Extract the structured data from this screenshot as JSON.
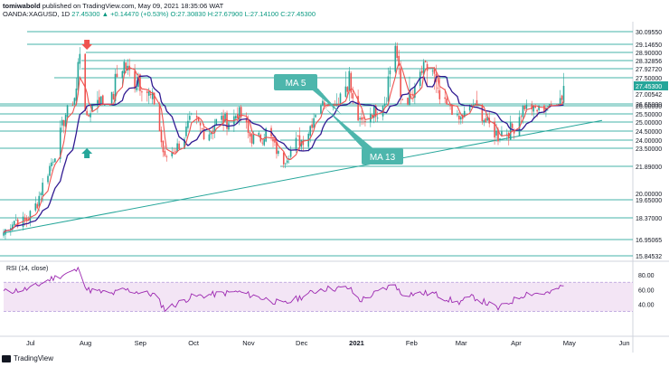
{
  "header": {
    "author": "tomiwabold",
    "published_text": "published on TradingView.com, May 09, 2021 18:35:06 WAT",
    "symbol": "OANDA:XAGUSD, 1D",
    "ohlc_text": "27.45300 ▲ +0.14470 (+0.53%) O:27.30830 H:27.67900 L:27.14100 C:27.45300"
  },
  "footer": {
    "brand": "TradingView"
  },
  "rsi_label": "RSI (14, close)",
  "annotations": [
    {
      "id": "ma5",
      "text": "MA 5"
    },
    {
      "id": "ma13",
      "text": "MA 13"
    }
  ],
  "colors": {
    "candle_up": "#26a69a",
    "candle_down": "#ef5350",
    "ma5": "#ef5350",
    "ma13": "#311b92",
    "hline": "#26a69a",
    "trendline": "#26a69a",
    "callout": "#4db6ac",
    "rsi_line": "#9c27b0",
    "rsi_band": "#f3e5f5",
    "arrow_down": "#ef5350",
    "arrow_up": "#26a69a",
    "current_price_bg": "#26a69a"
  },
  "chart_data": {
    "type": "candlestick",
    "symbol": "XAGUSD",
    "timeframe": "1D",
    "x_labels": [
      "Jul",
      "Aug",
      "Sep",
      "Oct",
      "Nov",
      "Dec",
      "2021",
      "Feb",
      "Mar",
      "Apr",
      "May",
      "Jun"
    ],
    "y_axis_ticks": [
      "15.84532",
      "16.95065",
      "18.37000",
      "19.65000",
      "20.00000",
      "21.89000",
      "23.50000",
      "24.00000",
      "24.50000",
      "25.00000",
      "25.50000",
      "26.00000",
      "26.65000",
      "27.00542",
      "27.45300",
      "27.50000",
      "27.92720",
      "28.32856",
      "28.90000",
      "29.14650",
      "30.09550"
    ],
    "current_price": 27.453,
    "horizontal_levels": [
      30.0955,
      29.1465,
      28.9,
      28.32856,
      27.9272,
      27.5,
      26.65,
      26.0,
      25.5,
      25.0,
      24.5,
      24.0,
      23.5,
      21.89,
      19.65,
      18.37,
      16.95065,
      15.84532
    ],
    "price_path": [
      {
        "date": "2020-06-25",
        "close": 17.6
      },
      {
        "date": "2020-07-06",
        "close": 18.3
      },
      {
        "date": "2020-07-14",
        "close": 19.2
      },
      {
        "date": "2020-07-22",
        "close": 22.5
      },
      {
        "date": "2020-07-28",
        "close": 24.5
      },
      {
        "date": "2020-08-05",
        "close": 27.5
      },
      {
        "date": "2020-08-07",
        "close": 29.2
      },
      {
        "date": "2020-08-11",
        "close": 24.8
      },
      {
        "date": "2020-08-17",
        "close": 27.0
      },
      {
        "date": "2020-08-25",
        "close": 26.6
      },
      {
        "date": "2020-09-01",
        "close": 28.3
      },
      {
        "date": "2020-09-10",
        "close": 27.3
      },
      {
        "date": "2020-09-18",
        "close": 26.9
      },
      {
        "date": "2020-09-24",
        "close": 22.3
      },
      {
        "date": "2020-10-02",
        "close": 24.0
      },
      {
        "date": "2020-10-09",
        "close": 24.9
      },
      {
        "date": "2020-10-20",
        "close": 24.6
      },
      {
        "date": "2020-11-04",
        "close": 25.6
      },
      {
        "date": "2020-11-10",
        "close": 24.2
      },
      {
        "date": "2020-11-20",
        "close": 24.3
      },
      {
        "date": "2020-11-30",
        "close": 22.6
      },
      {
        "date": "2020-12-10",
        "close": 24.0
      },
      {
        "date": "2020-12-21",
        "close": 26.2
      },
      {
        "date": "2021-01-06",
        "close": 27.4
      },
      {
        "date": "2021-01-12",
        "close": 25.1
      },
      {
        "date": "2021-01-22",
        "close": 25.6
      },
      {
        "date": "2021-02-01",
        "close": 29.0
      },
      {
        "date": "2021-02-04",
        "close": 26.7
      },
      {
        "date": "2021-02-12",
        "close": 27.2
      },
      {
        "date": "2021-02-22",
        "close": 28.0
      },
      {
        "date": "2021-02-28",
        "close": 26.4
      },
      {
        "date": "2021-03-08",
        "close": 25.2
      },
      {
        "date": "2021-03-17",
        "close": 26.2
      },
      {
        "date": "2021-03-26",
        "close": 25.0
      },
      {
        "date": "2021-03-31",
        "close": 24.0
      },
      {
        "date": "2021-04-08",
        "close": 24.9
      },
      {
        "date": "2021-04-16",
        "close": 25.9
      },
      {
        "date": "2021-04-23",
        "close": 26.0
      },
      {
        "date": "2021-04-30",
        "close": 25.9
      },
      {
        "date": "2021-05-04",
        "close": 26.8
      },
      {
        "date": "2021-05-07",
        "close": 27.45
      }
    ],
    "indicators": [
      "MA 5",
      "MA 13",
      "RSI (14, close)"
    ],
    "rsi": {
      "ticks": [
        "80.00",
        "60.00",
        "40.00"
      ],
      "upper_band": 70,
      "lower_band": 30,
      "path": [
        {
          "date": "2020-06-25",
          "value": 57
        },
        {
          "date": "2020-07-10",
          "value": 61
        },
        {
          "date": "2020-07-22",
          "value": 75
        },
        {
          "date": "2020-08-07",
          "value": 88
        },
        {
          "date": "2020-08-11",
          "value": 60
        },
        {
          "date": "2020-08-25",
          "value": 54
        },
        {
          "date": "2020-09-01",
          "value": 60
        },
        {
          "date": "2020-09-18",
          "value": 53
        },
        {
          "date": "2020-09-24",
          "value": 33
        },
        {
          "date": "2020-10-09",
          "value": 50
        },
        {
          "date": "2020-11-04",
          "value": 57
        },
        {
          "date": "2020-11-20",
          "value": 47
        },
        {
          "date": "2020-11-30",
          "value": 40
        },
        {
          "date": "2020-12-21",
          "value": 61
        },
        {
          "date": "2021-01-06",
          "value": 62
        },
        {
          "date": "2021-01-12",
          "value": 45
        },
        {
          "date": "2021-02-01",
          "value": 68
        },
        {
          "date": "2021-02-04",
          "value": 54
        },
        {
          "date": "2021-02-22",
          "value": 55
        },
        {
          "date": "2021-03-08",
          "value": 42
        },
        {
          "date": "2021-03-17",
          "value": 50
        },
        {
          "date": "2021-03-31",
          "value": 34
        },
        {
          "date": "2021-04-16",
          "value": 55
        },
        {
          "date": "2021-04-30",
          "value": 55
        },
        {
          "date": "2021-05-04",
          "value": 62
        },
        {
          "date": "2021-05-07",
          "value": 65
        }
      ]
    }
  }
}
